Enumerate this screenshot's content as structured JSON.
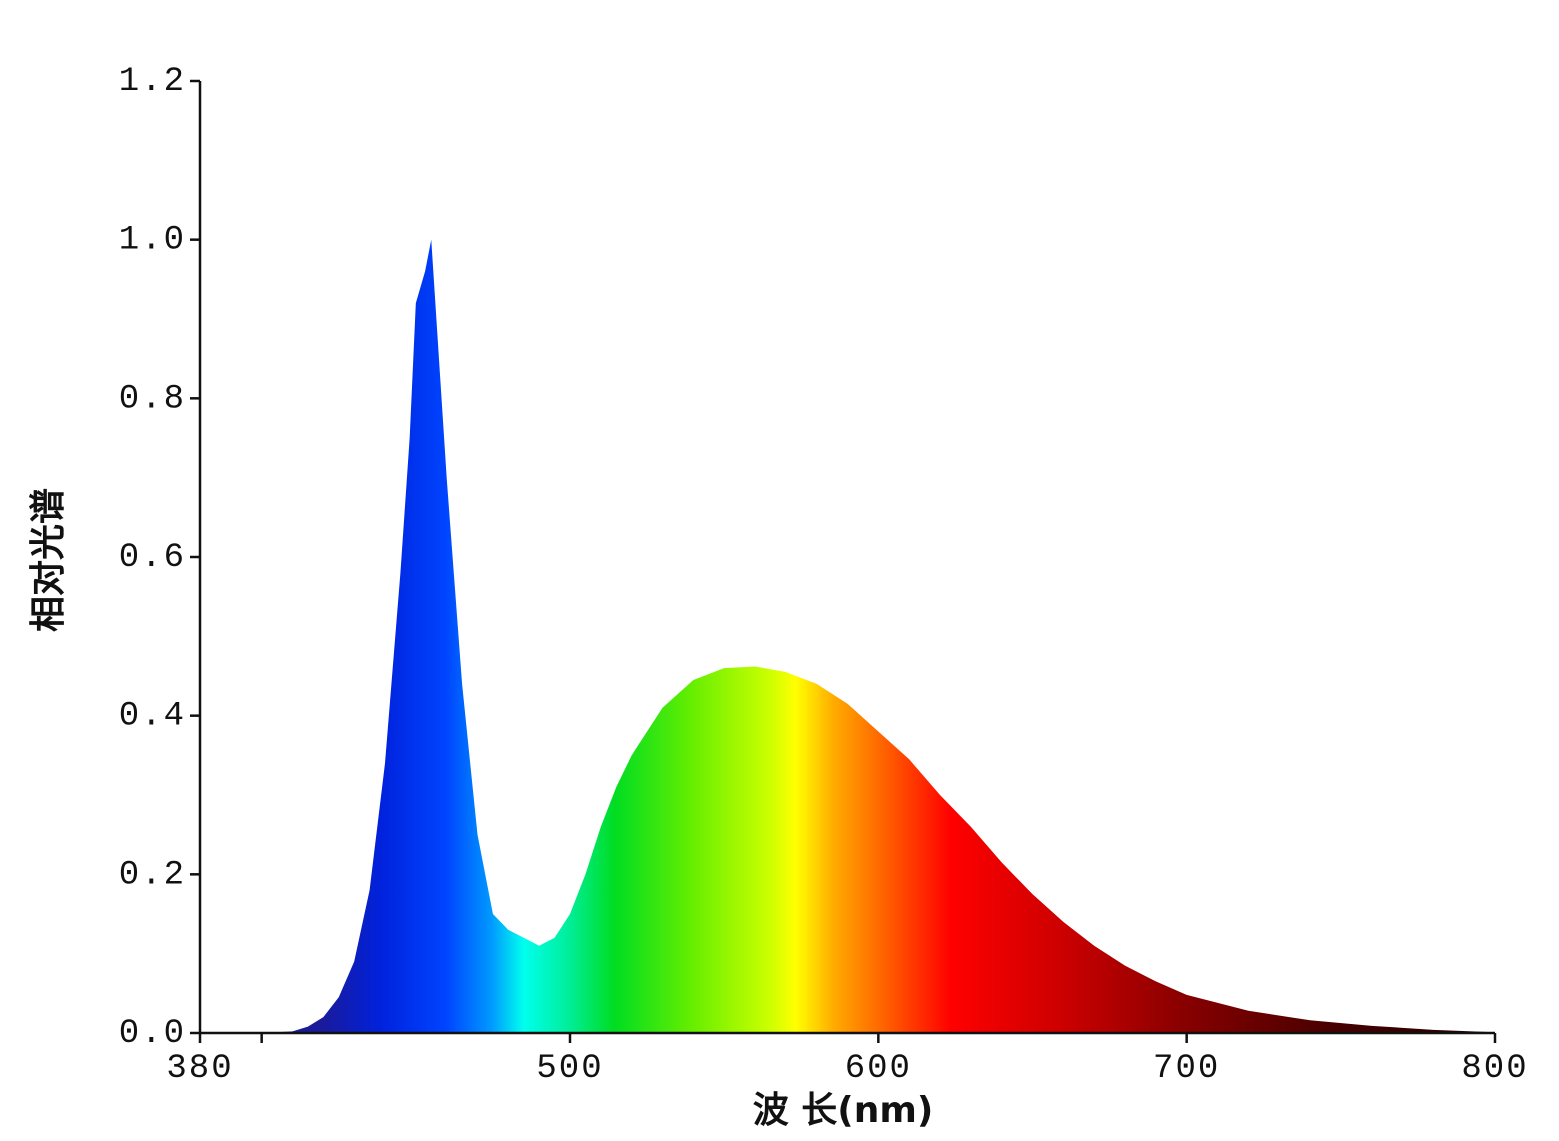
{
  "chart_data": {
    "type": "area",
    "xlabel": "波 长(nm)",
    "ylabel": "相对光谱",
    "x": [
      380,
      400,
      410,
      415,
      420,
      425,
      430,
      435,
      440,
      445,
      448,
      450,
      453,
      455,
      457,
      460,
      465,
      470,
      475,
      480,
      485,
      490,
      495,
      500,
      505,
      510,
      515,
      520,
      530,
      540,
      550,
      560,
      570,
      580,
      590,
      600,
      610,
      620,
      630,
      640,
      650,
      660,
      670,
      680,
      690,
      700,
      720,
      740,
      760,
      780,
      800
    ],
    "values": [
      0,
      0,
      0.002,
      0.008,
      0.02,
      0.045,
      0.09,
      0.18,
      0.34,
      0.58,
      0.75,
      0.92,
      0.96,
      1.0,
      0.88,
      0.7,
      0.44,
      0.25,
      0.15,
      0.13,
      0.12,
      0.11,
      0.12,
      0.15,
      0.2,
      0.26,
      0.31,
      0.35,
      0.41,
      0.445,
      0.46,
      0.462,
      0.455,
      0.44,
      0.415,
      0.38,
      0.345,
      0.3,
      0.26,
      0.215,
      0.175,
      0.14,
      0.11,
      0.085,
      0.065,
      0.048,
      0.028,
      0.016,
      0.009,
      0.004,
      0.001
    ],
    "xlim": [
      380,
      800
    ],
    "xticks": [
      380,
      {
        "value": 400,
        "label": null
      },
      500,
      600,
      700,
      800
    ],
    "ylim": [
      0,
      1.2
    ],
    "yticks": [
      {
        "value": 0,
        "label": "0.0"
      },
      0.2,
      0.4,
      0.6,
      0.8,
      {
        "value": 1,
        "label": "1.0"
      },
      1.2
    ],
    "grid": false
  }
}
